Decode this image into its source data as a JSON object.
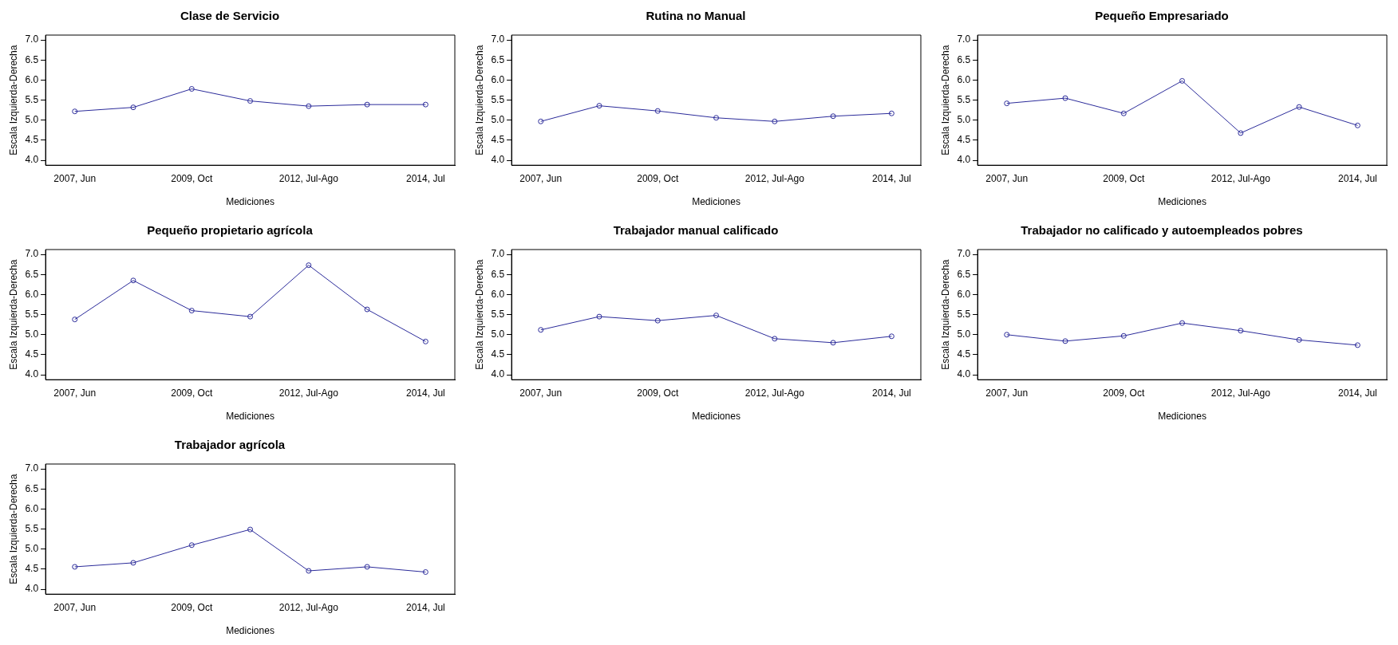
{
  "chart_data": [
    {
      "type": "line",
      "title": "Clase de Servicio",
      "xlabel": "Mediciones",
      "ylabel": "Escala Izquierda-Derecha",
      "categories": [
        "2007, Jun",
        null,
        "2009, Oct",
        null,
        "2012, Jul-Ago",
        null,
        "2014, Jul"
      ],
      "series": [
        {
          "color": "#2b2b9a",
          "values": [
            5.22,
            5.32,
            5.78,
            5.48,
            5.35,
            5.39,
            5.39
          ]
        }
      ],
      "ylim": [
        3.88,
        7.12
      ],
      "yticks": [
        {
          "value": 4,
          "label": "4.0"
        },
        4.5,
        {
          "value": 5,
          "label": "5.0"
        },
        5.5,
        {
          "value": 6,
          "label": "6.0"
        },
        6.5,
        {
          "value": 7,
          "label": "7.0"
        }
      ],
      "grid": false,
      "legend": false,
      "marker": "circle",
      "line_style": "solid"
    },
    {
      "type": "line",
      "title": "Rutina no Manual",
      "xlabel": "Mediciones",
      "ylabel": "Escala Izquierda-Derecha",
      "categories": [
        "2007, Jun",
        null,
        "2009, Oct",
        null,
        "2012, Jul-Ago",
        null,
        "2014, Jul"
      ],
      "series": [
        {
          "color": "#2b2b9a",
          "values": [
            4.97,
            5.36,
            5.23,
            5.06,
            4.97,
            5.1,
            5.17
          ]
        }
      ],
      "ylim": [
        3.88,
        7.12
      ],
      "yticks": [
        {
          "value": 4,
          "label": "4.0"
        },
        4.5,
        {
          "value": 5,
          "label": "5.0"
        },
        5.5,
        {
          "value": 6,
          "label": "6.0"
        },
        6.5,
        {
          "value": 7,
          "label": "7.0"
        }
      ],
      "grid": false,
      "legend": false,
      "marker": "circle",
      "line_style": "solid"
    },
    {
      "type": "line",
      "title": "Pequeño Empresariado",
      "xlabel": "Mediciones",
      "ylabel": "Escala Izquierda-Derecha",
      "categories": [
        "2007, Jun",
        null,
        "2009, Oct",
        null,
        "2012, Jul-Ago",
        null,
        "2014, Jul"
      ],
      "series": [
        {
          "color": "#2b2b9a",
          "values": [
            5.42,
            5.55,
            5.17,
            5.98,
            4.68,
            5.33,
            4.87
          ]
        }
      ],
      "ylim": [
        3.88,
        7.12
      ],
      "yticks": [
        {
          "value": 4,
          "label": "4.0"
        },
        4.5,
        {
          "value": 5,
          "label": "5.0"
        },
        5.5,
        {
          "value": 6,
          "label": "6.0"
        },
        6.5,
        {
          "value": 7,
          "label": "7.0"
        }
      ],
      "grid": false,
      "legend": false,
      "marker": "circle",
      "line_style": "solid"
    },
    {
      "type": "line",
      "title": "Pequeño propietario agrícola",
      "xlabel": "Mediciones",
      "ylabel": "Escala Izquierda-Derecha",
      "categories": [
        "2007, Jun",
        null,
        "2009, Oct",
        null,
        "2012, Jul-Ago",
        null,
        "2014, Jul"
      ],
      "series": [
        {
          "color": "#2b2b9a",
          "values": [
            5.38,
            6.35,
            5.6,
            5.45,
            6.73,
            5.63,
            4.83
          ]
        }
      ],
      "ylim": [
        3.88,
        7.12
      ],
      "yticks": [
        {
          "value": 4,
          "label": "4.0"
        },
        4.5,
        {
          "value": 5,
          "label": "5.0"
        },
        5.5,
        {
          "value": 6,
          "label": "6.0"
        },
        6.5,
        {
          "value": 7,
          "label": "7.0"
        }
      ],
      "grid": false,
      "legend": false,
      "marker": "circle",
      "line_style": "solid"
    },
    {
      "type": "line",
      "title": "Trabajador manual calificado",
      "xlabel": "Mediciones",
      "ylabel": "Escala Izquierda-Derecha",
      "categories": [
        "2007, Jun",
        null,
        "2009, Oct",
        null,
        "2012, Jul-Ago",
        null,
        "2014, Jul"
      ],
      "series": [
        {
          "color": "#2b2b9a",
          "values": [
            5.12,
            5.45,
            5.35,
            5.48,
            4.9,
            4.8,
            4.96
          ]
        }
      ],
      "ylim": [
        3.88,
        7.12
      ],
      "yticks": [
        {
          "value": 4,
          "label": "4.0"
        },
        4.5,
        {
          "value": 5,
          "label": "5.0"
        },
        5.5,
        {
          "value": 6,
          "label": "6.0"
        },
        6.5,
        {
          "value": 7,
          "label": "7.0"
        }
      ],
      "grid": false,
      "legend": false,
      "marker": "circle",
      "line_style": "solid"
    },
    {
      "type": "line",
      "title": "Trabajador no calificado y autoempleados pobres",
      "xlabel": "Mediciones",
      "ylabel": "Escala Izquierda-Derecha",
      "categories": [
        "2007, Jun",
        null,
        "2009, Oct",
        null,
        "2012, Jul-Ago",
        null,
        "2014, Jul"
      ],
      "series": [
        {
          "color": "#2b2b9a",
          "values": [
            5.0,
            4.84,
            4.97,
            5.29,
            5.1,
            4.87,
            4.74
          ]
        }
      ],
      "ylim": [
        3.88,
        7.12
      ],
      "yticks": [
        {
          "value": 4,
          "label": "4.0"
        },
        4.5,
        {
          "value": 5,
          "label": "5.0"
        },
        5.5,
        {
          "value": 6,
          "label": "6.0"
        },
        6.5,
        {
          "value": 7,
          "label": "7.0"
        }
      ],
      "grid": false,
      "legend": false,
      "marker": "circle",
      "line_style": "solid"
    },
    {
      "type": "line",
      "title": "Trabajador agrícola",
      "xlabel": "Mediciones",
      "ylabel": "Escala Izquierda-Derecha",
      "categories": [
        "2007, Jun",
        null,
        "2009, Oct",
        null,
        "2012, Jul-Ago",
        null,
        "2014, Jul"
      ],
      "series": [
        {
          "color": "#2b2b9a",
          "values": [
            4.56,
            4.66,
            5.1,
            5.49,
            4.46,
            4.56,
            4.43
          ]
        }
      ],
      "ylim": [
        3.88,
        7.12
      ],
      "yticks": [
        {
          "value": 4,
          "label": "4.0"
        },
        4.5,
        {
          "value": 5,
          "label": "5.0"
        },
        5.5,
        {
          "value": 6,
          "label": "6.0"
        },
        6.5,
        {
          "value": 7,
          "label": "7.0"
        }
      ],
      "grid": false,
      "legend": false,
      "marker": "circle",
      "line_style": "solid"
    }
  ]
}
